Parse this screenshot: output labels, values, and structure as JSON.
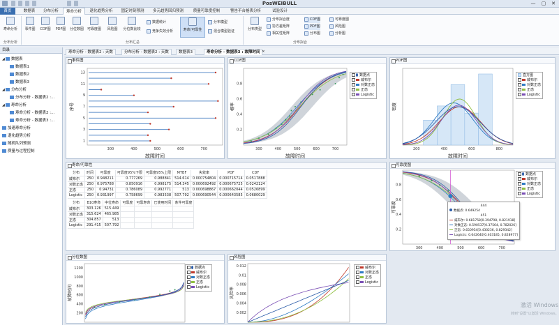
{
  "window": {
    "title": "PosWEIBULL",
    "min": "—",
    "max": "▢",
    "close": "✕"
  },
  "tabs": [
    "首页",
    "数据表",
    "分布分析",
    "寿命分析",
    "退化趋势分析",
    "固定时刻预测",
    "多元趋势回归预测",
    "质量可靠度控制",
    "警告不合格表分析",
    "试验设计"
  ],
  "ribbon": {
    "big": [
      {
        "label": "寿命分析"
      },
      {
        "label": "事件图"
      },
      {
        "label": "CDF图"
      },
      {
        "label": "PDF图"
      },
      {
        "label": "分位数图"
      },
      {
        "label": "可靠度图"
      },
      {
        "label": "风险图"
      },
      {
        "label": "分位数比较"
      },
      {
        "label": "寿命/可靠性"
      },
      {
        "label": "分布类型"
      }
    ],
    "small": [
      {
        "label": "数据统计"
      },
      {
        "label": "竞争失效分析"
      },
      {
        "label": "分布模型"
      },
      {
        "label": "混合模型验证"
      },
      {
        "label": "分布拟合度"
      },
      {
        "label": "协方差矩阵"
      },
      {
        "label": "相关性矩阵"
      },
      {
        "label": "CDF图"
      },
      {
        "label": "PDF图"
      },
      {
        "label": "分布图"
      },
      {
        "label": "可靠度图"
      },
      {
        "label": "风险图"
      },
      {
        "label": "分析图"
      }
    ],
    "groups": [
      "分布分析",
      "分布汇总",
      "分布拟合"
    ]
  },
  "sidebar": {
    "header": "目录",
    "items": [
      {
        "label": "数据表",
        "level": 0
      },
      {
        "label": "数据表1",
        "level": 1
      },
      {
        "label": "数据表2",
        "level": 1
      },
      {
        "label": "数据表3",
        "level": 1
      },
      {
        "label": "分布分析",
        "level": 0
      },
      {
        "label": "分布分析 - 数据表2 :...",
        "level": 1
      },
      {
        "label": "寿命分析",
        "level": 0
      },
      {
        "label": "寿命分析 - 数据表2 :...",
        "level": 1
      },
      {
        "label": "寿命分析 - 数据表3 :...",
        "level": 1
      },
      {
        "label": "加速寿命分析",
        "level": 0
      },
      {
        "label": "退化趋势分析",
        "level": 0
      },
      {
        "label": "随机队列预测",
        "level": 0
      },
      {
        "label": "质量与过程控制",
        "level": 0
      }
    ]
  },
  "doc_tabs": [
    "寿命分析 - 数据表2 : 天数",
    "分布分析 - 数据表2 : 天数",
    "数据表3",
    "寿命分析 - 数据表3 : 故障时间"
  ],
  "colors": {
    "weibull": "#c0392b",
    "lognormal": "#2e7bc4",
    "normal": "#8fbf3f",
    "logistic": "#7a4fb5",
    "blue": "#2a5ba8",
    "accent": "#3a6fb0"
  },
  "legend_items": [
    "数据点",
    "威布尔",
    "对数正态",
    "正态",
    "Logistic"
  ],
  "panels": {
    "event": {
      "title": "事件图",
      "xlabel": "故障时间",
      "ylabel": "序号"
    },
    "cdf": {
      "title": "CDF图",
      "xlabel": "故障时间",
      "ylabel": "概率"
    },
    "pdf": {
      "title": "PDF图",
      "xlabel": "故障时间",
      "ylabel": "密度",
      "legend_first": "直方图"
    },
    "table": {
      "title": "寿命/可靠性"
    },
    "reliability": {
      "title": "可靠度图",
      "ylabel": "可靠度"
    },
    "quantile": {
      "title": "分位数图",
      "ylabel": "故障时间"
    },
    "hazard": {
      "title": "风险图",
      "ylabel": "风险率"
    }
  },
  "table1": {
    "headers": [
      "分布",
      "时间",
      "可靠度",
      "可靠度95%下限",
      "可靠度95%上限",
      "MTBF",
      "失效率",
      "PDF",
      "CDF"
    ],
    "rows": [
      [
        "威布尔",
        "250",
        "0.948211",
        "0.777269",
        "0.988841",
        "514.614",
        "0.000754804",
        "0.000715714",
        "0.0517888"
      ],
      [
        "对数正态",
        "250",
        "0.975788",
        "0.850916",
        "0.998175",
        "514.345",
        "0.000692492",
        "0.000675725",
        "0.0242124"
      ],
      [
        "正态",
        "250",
        "0.94731",
        "0.786089",
        "0.992771",
        "513",
        "0.000698867",
        "0.000662044",
        "0.0526899"
      ],
      [
        "Logistic",
        "250",
        "0.931997",
        "0.758699",
        "0.983538",
        "507.792",
        "0.000690544",
        "0.000643585",
        "0.0680029"
      ]
    ]
  },
  "table2": {
    "headers": [
      "分布",
      "B10寿命",
      "中位寿命",
      "可靠度",
      "可靠寿命",
      "已使用时间",
      "条件可靠度"
    ],
    "rows": [
      [
        "威布尔",
        "303.126",
        "515.449",
        "",
        "",
        "",
        ""
      ],
      [
        "对数正态",
        "315.624",
        "465.985",
        "",
        "",
        "",
        ""
      ],
      [
        "正态",
        "304.857",
        "513",
        "",
        "",
        "",
        ""
      ],
      [
        "Logistic",
        "291.415",
        "507.792",
        "",
        "",
        "",
        ""
      ]
    ]
  },
  "tooltip": {
    "header": "444",
    "point": "数据点: 0.649254",
    "sub": "451",
    "lines": [
      "威布尔: 0.681758[0.394798, 0.821918]",
      "对数正态: 0.590537[0.37564, 0.782026]",
      "正态: 0.650954[0.430236, 0.829342]",
      "Logistic: 0.642640[0.403185, 0.828977]"
    ]
  },
  "watermark": {
    "line1": "激活 Windows",
    "line2": "转到\"设置\"以激活 Windows。"
  },
  "chart_data": [
    {
      "type": "bar",
      "title": "事件图",
      "xlabel": "故障时间",
      "ylabel": "序号",
      "xlim": [
        200,
        780
      ],
      "ticks_x": [
        300,
        400,
        500,
        600,
        700
      ],
      "categories": [
        "1",
        "2",
        "3",
        "4",
        "5",
        "6",
        "7",
        "8",
        "9",
        "10",
        "11",
        "12",
        "13"
      ],
      "values": [
        470,
        460,
        550,
        470,
        750,
        460,
        570,
        760,
        400,
        260,
        720,
        560,
        750
      ]
    },
    {
      "type": "line",
      "title": "CDF图",
      "xlabel": "故障时间",
      "ylabel": "概率",
      "ylim": [
        0,
        1
      ],
      "ticks_x": [
        300,
        400,
        500,
        600,
        700
      ],
      "ticks_y": [
        0.2,
        0.4,
        0.6,
        0.8
      ]
    },
    {
      "type": "bar",
      "title": "PDF图",
      "xlabel": "故障时间",
      "ylabel": "密度",
      "ticks_x": [
        200,
        400,
        600,
        800
      ]
    },
    {
      "type": "line",
      "title": "可靠度图",
      "ylabel": "可靠度",
      "ticks_x": [
        300,
        400,
        500,
        600,
        700
      ],
      "ticks_y": [
        0.2,
        0.4,
        0.6,
        0.8
      ]
    },
    {
      "type": "line",
      "title": "分位数图",
      "ylabel": "故障时间",
      "ticks_y": [
        200,
        400,
        600,
        800,
        1000,
        1200
      ]
    },
    {
      "type": "line",
      "title": "风险图",
      "ylabel": "风险率",
      "ticks_y": [
        0.002,
        0.004,
        0.006,
        0.008,
        0.01,
        0.012
      ]
    }
  ]
}
